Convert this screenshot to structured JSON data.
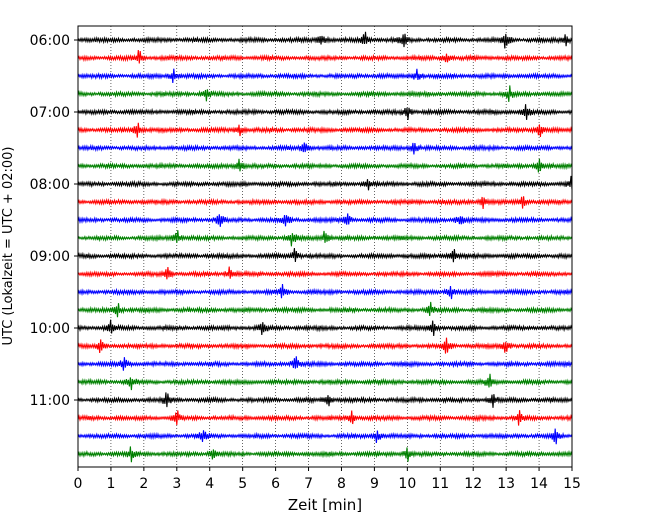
{
  "chart_data": {
    "type": "line",
    "title": "",
    "xlabel": "Zeit  [min]",
    "ylabel": "UTC (Lokalzeit = UTC + 02:00)",
    "xlim": [
      0,
      15
    ],
    "x_ticks": [
      "0",
      "1",
      "2",
      "3",
      "4",
      "5",
      "6",
      "7",
      "8",
      "9",
      "10",
      "11",
      "12",
      "13",
      "14",
      "15"
    ],
    "y_ticks": [
      {
        "label": "06:00",
        "row": 0
      },
      {
        "label": "07:00",
        "row": 4
      },
      {
        "label": "08:00",
        "row": 8
      },
      {
        "label": "09:00",
        "row": 12
      },
      {
        "label": "10:00",
        "row": 16
      },
      {
        "label": "11:00",
        "row": 20
      }
    ],
    "row_start": "06:00",
    "row_interval_minutes": 15,
    "row_count": 24,
    "color_cycle": [
      "#000000",
      "#ff0000",
      "#0000ff",
      "#008000"
    ],
    "vertical_grid": "dotted",
    "spikes": [
      [
        7.4,
        8.7,
        9.9,
        13.0,
        14.8
      ],
      [
        1.85,
        11.2
      ],
      [
        2.9,
        10.3
      ],
      [
        3.9,
        13.1
      ],
      [
        10.0,
        13.6
      ],
      [
        1.8,
        4.9,
        14.0
      ],
      [
        6.9,
        10.2
      ],
      [
        4.9,
        14.0
      ],
      [
        8.8,
        15.0
      ],
      [
        12.3,
        13.5
      ],
      [
        4.3,
        6.3,
        8.2,
        11.6
      ],
      [
        3.0,
        6.5,
        7.5
      ],
      [
        6.6,
        11.4
      ],
      [
        2.7,
        4.6
      ],
      [
        6.2,
        11.3
      ],
      [
        1.2,
        10.7
      ],
      [
        1.0,
        5.6,
        10.8
      ],
      [
        0.7,
        11.2,
        13.0
      ],
      [
        1.4,
        6.6
      ],
      [
        1.6,
        12.5
      ],
      [
        2.7,
        7.6,
        12.6
      ],
      [
        3.0,
        8.3,
        13.4
      ],
      [
        3.8,
        9.1,
        14.5
      ],
      [
        1.6,
        4.1,
        10.0
      ]
    ]
  }
}
